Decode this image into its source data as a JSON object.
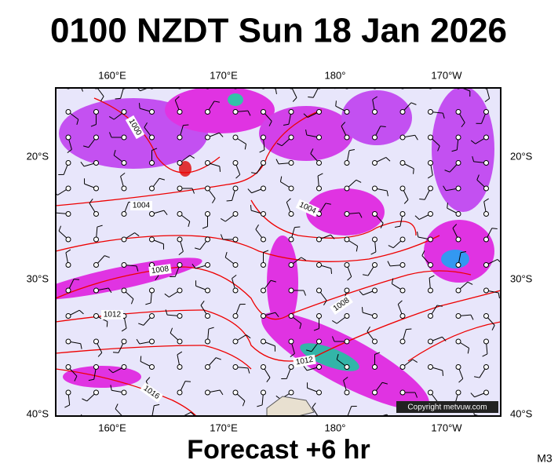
{
  "header": {
    "title": "0100 NZDT Sun 18 Jan 2026"
  },
  "map": {
    "lon_labels": [
      "160°E",
      "170°E",
      "180°",
      "170°W"
    ],
    "lat_labels": [
      "20°S",
      "30°S",
      "40°S"
    ],
    "isobar_labels": [
      "1000",
      "1004",
      "1004",
      "1008",
      "1008",
      "1012",
      "1012",
      "1016"
    ],
    "copyright": "Copyright metvuw.com"
  },
  "footer": {
    "forecast": "Forecast +6 hr",
    "code": "M3"
  }
}
